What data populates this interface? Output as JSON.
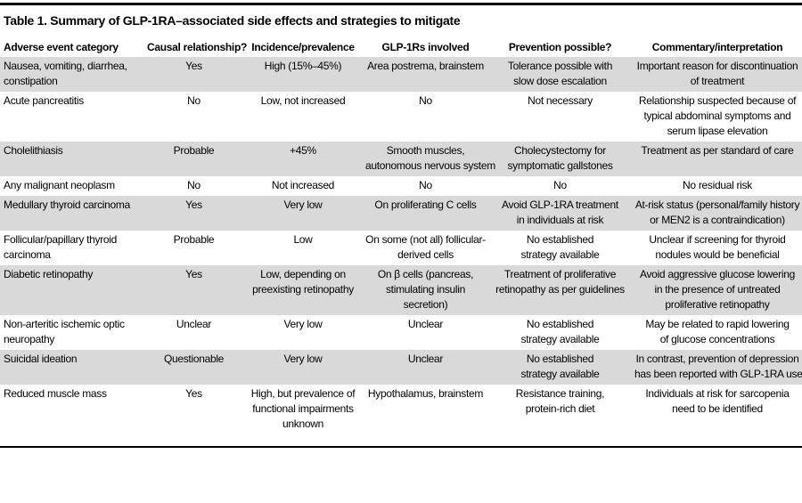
{
  "colors": {
    "stripe": "#d9d9d9",
    "rule": "#000000",
    "text": "#000000",
    "bg": "#ffffff"
  },
  "table": {
    "title": "Table 1. Summary of GLP-1RA–associated side effects and strategies to mitigate",
    "columns": [
      "Adverse event category",
      "Causal relationship?",
      "Incidence/prevalence",
      "GLP-1Rs involved",
      "Prevention possible?",
      "Commentary/interpretation"
    ],
    "rows": [
      {
        "cells": [
          "Nausea, vomiting, diarrhea,\nconstipation",
          "Yes",
          "High (15%–45%)",
          "Area postrema, brainstem",
          "Tolerance possible with\nslow dose escalation",
          "Important reason for discontinuation\nof treatment"
        ]
      },
      {
        "cells": [
          "Acute pancreatitis",
          "No",
          "Low, not increased",
          "No",
          "Not necessary",
          "Relationship suspected because of\ntypical abdominal symptoms and\nserum lipase elevation"
        ]
      },
      {
        "cells": [
          "Cholelithiasis",
          "Probable",
          "+45%",
          "Smooth muscles,\nautonomous nervous system",
          "Cholecystectomy for\nsymptomatic gallstones",
          "Treatment as per standard of care"
        ]
      },
      {
        "cells": [
          "Any malignant neoplasm",
          "No",
          "Not increased",
          "No",
          "No",
          "No residual risk"
        ]
      },
      {
        "cells": [
          "Medullary thyroid carcinoma",
          "Yes",
          "Very low",
          "On proliferating C cells",
          "Avoid GLP-1RA treatment\nin individuals at risk",
          "At-risk status (personal/family history\nor MEN2 is a contraindication)"
        ]
      },
      {
        "cells": [
          "Follicular/papillary thyroid\ncarcinoma",
          "Probable",
          "Low",
          "On some (not all) follicular-\nderived cells",
          "No established\nstrategy available",
          "Unclear if screening for thyroid\nnodules would be beneficial"
        ]
      },
      {
        "cells": [
          "Diabetic retinopathy",
          "Yes",
          "Low, depending on\npreexisting retinopathy",
          "On β cells (pancreas,\nstimulating insulin\nsecretion)",
          "Treatment of proliferative\nretinopathy as per guidelines",
          "Avoid aggressive glucose lowering\nin the presence of untreated\nproliferative retinopathy"
        ]
      },
      {
        "cells": [
          "Non-arteritic ischemic optic\nneuropathy",
          "Unclear",
          "Very low",
          "Unclear",
          "No established\nstrategy available",
          "May be related to rapid lowering\nof glucose concentrations"
        ]
      },
      {
        "cells": [
          "Suicidal ideation",
          "Questionable",
          "Very low",
          "Unclear",
          "No established\nstrategy available",
          "In contrast, prevention of depression\nhas been reported with GLP-1RA use"
        ]
      },
      {
        "cells": [
          "Reduced muscle mass",
          "Yes",
          "High, but prevalence of\nfunctional impairments\nunknown",
          "Hypothalamus, brainstem",
          "Resistance training,\nprotein-rich diet",
          "Individuals at risk for sarcopenia\nneed to be identified"
        ]
      }
    ]
  }
}
